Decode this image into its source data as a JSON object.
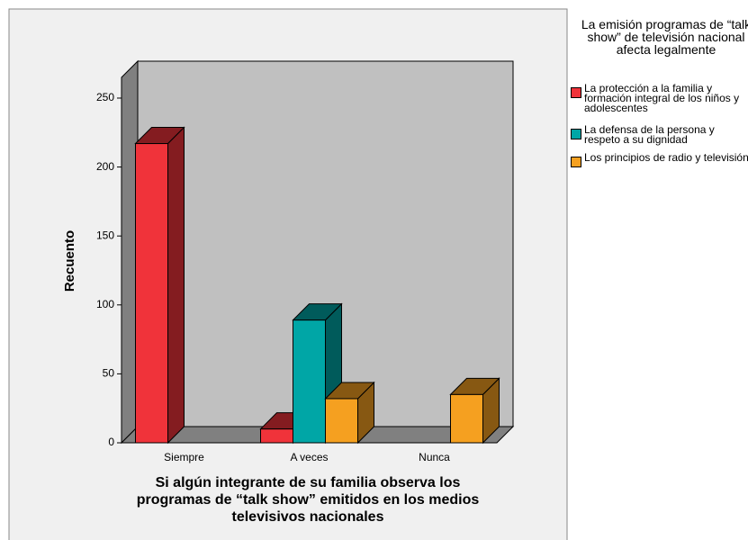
{
  "chart_data": {
    "type": "bar3d",
    "x_label": "Si algún integrante de su familia observa los programas de “talk show” emitidos en los medios televisivos nacionales",
    "y_label": "Recuento",
    "legend_title": "La emisión programas de “talk show” de televisión nacional afecta legalmente",
    "categories": [
      "Siempre",
      "A veces",
      "Nunca"
    ],
    "series": [
      {
        "name": "La protección a la familia y formación integral de los niños y adolescentes",
        "color": "#f0333a",
        "values": [
          217,
          10,
          null
        ]
      },
      {
        "name": "La defensa de la persona y respeto a su dignidad",
        "color": "#00a6a6",
        "values": [
          null,
          89,
          null
        ]
      },
      {
        "name": "Los principios de radio y televisión",
        "color": "#f5a020",
        "values": [
          null,
          32,
          35
        ]
      }
    ],
    "ylim": [
      0,
      265
    ],
    "yticks": [
      0,
      50,
      100,
      150,
      200,
      250
    ],
    "grid": false,
    "legend": "right"
  }
}
